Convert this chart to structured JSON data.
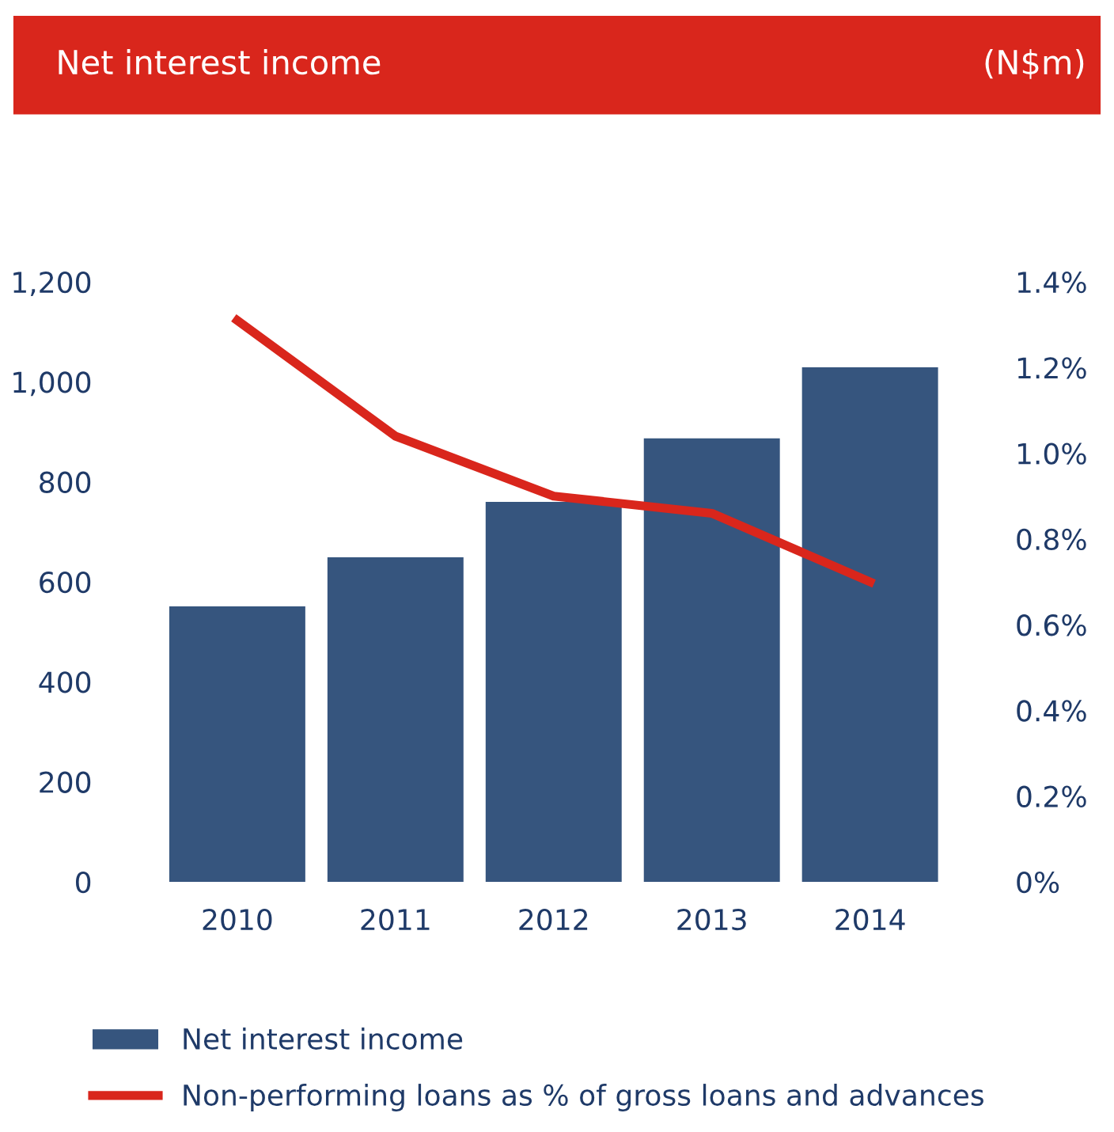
{
  "chart_data": {
    "type": "bar",
    "title": "Net interest income",
    "subtitle": "(N$m)",
    "categories": [
      "2010",
      "2011",
      "2012",
      "2013",
      "2014"
    ],
    "series": [
      {
        "name": "Net interest income",
        "color": "#36557e",
        "values": [
          551,
          649,
          760,
          887,
          1029
        ]
      },
      {
        "name": "Non-performing loans as % of gross loans and advances",
        "type": "line",
        "axis": "y2",
        "color": "#d9261c",
        "values": [
          1.31,
          1.04,
          0.9,
          0.86,
          0.7
        ]
      }
    ],
    "ylim": [
      0,
      1200
    ],
    "yticks": [
      0,
      200,
      400,
      600,
      800,
      {
        "value": 1000,
        "label": "1,000"
      },
      {
        "value": 1200,
        "label": "1,200"
      }
    ],
    "y2lim": [
      0,
      1.4
    ],
    "y2ticks": [
      {
        "value": 0,
        "label": "0%"
      },
      {
        "value": 0.2,
        "label": "0.2%"
      },
      {
        "value": 0.4,
        "label": "0.4%"
      },
      {
        "value": 0.6,
        "label": "0.6%"
      },
      {
        "value": 0.8,
        "label": "0.8%"
      },
      {
        "value": 1.0,
        "label": "1.0%"
      },
      {
        "value": 1.2,
        "label": "1.2%"
      },
      {
        "value": 1.4,
        "label": "1.4%"
      }
    ],
    "grid": false,
    "legend": "bottom",
    "marker": "none",
    "line_style": "solid"
  }
}
